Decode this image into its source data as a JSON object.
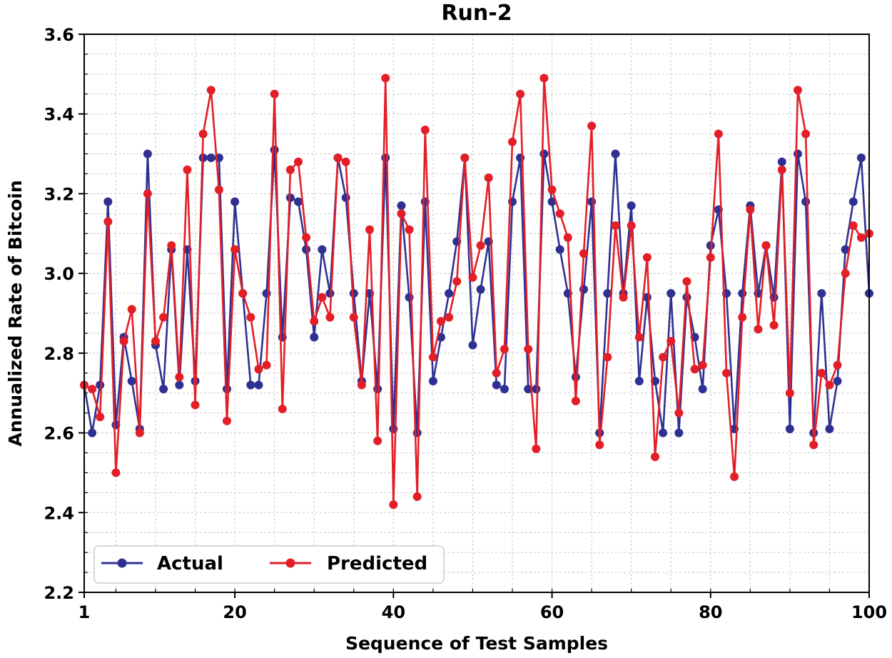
{
  "chart_data": {
    "type": "line",
    "title": "Run-2",
    "xlabel": "Sequence of Test Samples",
    "ylabel": "Annualized Rate of Bitcoin",
    "xlim": [
      1,
      100
    ],
    "ylim": [
      2.2,
      3.6
    ],
    "x_ticks": [
      1,
      20,
      40,
      60,
      80,
      100
    ],
    "y_ticks": [
      2.2,
      2.4,
      2.6,
      2.8,
      3.0,
      3.2,
      3.4,
      3.6
    ],
    "grid": true,
    "legend_position": "bottom-left",
    "x": [
      1,
      2,
      3,
      4,
      5,
      6,
      7,
      8,
      9,
      10,
      11,
      12,
      13,
      14,
      15,
      16,
      17,
      18,
      19,
      20,
      21,
      22,
      23,
      24,
      25,
      26,
      27,
      28,
      29,
      30,
      31,
      32,
      33,
      34,
      35,
      36,
      37,
      38,
      39,
      40,
      41,
      42,
      43,
      44,
      45,
      46,
      47,
      48,
      49,
      50,
      51,
      52,
      53,
      54,
      55,
      56,
      57,
      58,
      59,
      60,
      61,
      62,
      63,
      64,
      65,
      66,
      67,
      68,
      69,
      70,
      71,
      72,
      73,
      74,
      75,
      76,
      77,
      78,
      79,
      80,
      81,
      82,
      83,
      84,
      85,
      86,
      87,
      88,
      89,
      90,
      91,
      92,
      93,
      94,
      95,
      96,
      97,
      98,
      99,
      100
    ],
    "series": [
      {
        "name": "Actual",
        "color": "#2e3192",
        "values": [
          2.72,
          2.6,
          2.72,
          3.18,
          2.62,
          2.84,
          2.73,
          2.61,
          3.3,
          2.82,
          2.71,
          3.06,
          2.72,
          3.06,
          2.73,
          3.29,
          3.29,
          3.29,
          2.71,
          3.18,
          2.95,
          2.72,
          2.72,
          2.95,
          3.31,
          2.84,
          3.19,
          3.18,
          3.06,
          2.84,
          3.06,
          2.95,
          3.29,
          3.19,
          2.95,
          2.73,
          2.95,
          2.71,
          3.29,
          2.61,
          3.17,
          2.94,
          2.6,
          3.18,
          2.73,
          2.84,
          2.95,
          3.08,
          3.29,
          2.82,
          2.96,
          3.08,
          2.72,
          2.71,
          3.18,
          3.29,
          2.71,
          2.71,
          3.3,
          3.18,
          3.06,
          2.95,
          2.74,
          2.96,
          3.18,
          2.6,
          2.95,
          3.3,
          2.95,
          3.17,
          2.73,
          2.94,
          2.73,
          2.6,
          2.95,
          2.6,
          2.94,
          2.84,
          2.71,
          3.07,
          3.16,
          2.95,
          2.61,
          2.95,
          3.17,
          2.95,
          3.07,
          2.94,
          3.28,
          2.61,
          3.3,
          3.18,
          2.6,
          2.95,
          2.61,
          2.73,
          3.06,
          3.18,
          3.29,
          2.95
        ]
      },
      {
        "name": "Predicted",
        "color": "#e31e26",
        "values": [
          2.72,
          2.71,
          2.64,
          3.13,
          2.5,
          2.83,
          2.91,
          2.6,
          3.2,
          2.83,
          2.89,
          3.07,
          2.74,
          3.26,
          2.67,
          3.35,
          3.46,
          3.21,
          2.63,
          3.06,
          2.95,
          2.89,
          2.76,
          2.77,
          3.45,
          2.66,
          3.26,
          3.28,
          3.09,
          2.88,
          2.94,
          2.89,
          3.29,
          3.28,
          2.89,
          2.72,
          3.11,
          2.58,
          3.49,
          2.42,
          3.15,
          3.11,
          2.44,
          3.36,
          2.79,
          2.88,
          2.89,
          2.98,
          3.29,
          2.99,
          3.07,
          3.24,
          2.75,
          2.81,
          3.33,
          3.45,
          2.81,
          2.56,
          3.49,
          3.21,
          3.15,
          3.09,
          2.68,
          3.05,
          3.37,
          2.57,
          2.79,
          3.12,
          2.94,
          3.12,
          2.84,
          3.04,
          2.54,
          2.79,
          2.83,
          2.65,
          2.98,
          2.76,
          2.77,
          3.04,
          3.35,
          2.75,
          2.49,
          2.89,
          3.16,
          2.86,
          3.07,
          2.87,
          3.26,
          2.7,
          3.46,
          3.35,
          2.57,
          2.75,
          2.72,
          2.77,
          3.0,
          3.12,
          3.09,
          3.1
        ]
      }
    ]
  }
}
